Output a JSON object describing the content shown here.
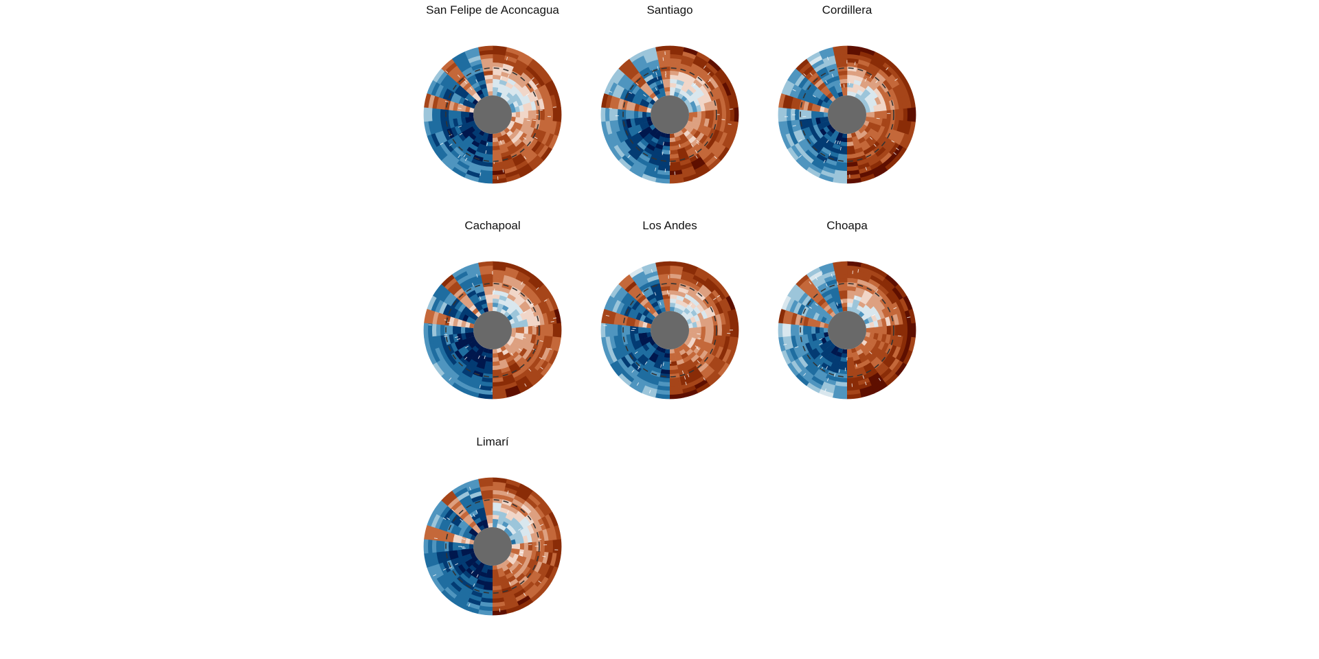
{
  "chart_data": {
    "type": "heatmap",
    "layout": "small-multiples grid, 3 columns",
    "panels": [
      {
        "title": "San Felipe de Aconcagua"
      },
      {
        "title": "Santiago"
      },
      {
        "title": "Cordillera"
      },
      {
        "title": "Cachapoal"
      },
      {
        "title": "Los Andes"
      },
      {
        "title": "Choapa"
      },
      {
        "title": "Limarí"
      }
    ],
    "center_color": "#696969",
    "reference_ring": "dashed",
    "palette": [
      "#00174d",
      "#033b73",
      "#1f6da0",
      "#4f95bf",
      "#9cc5da",
      "#d9e7ee",
      "#f1d6c8",
      "#dda080",
      "#c4683a",
      "#a64519",
      "#8a2c07",
      "#5e0f00"
    ]
  }
}
